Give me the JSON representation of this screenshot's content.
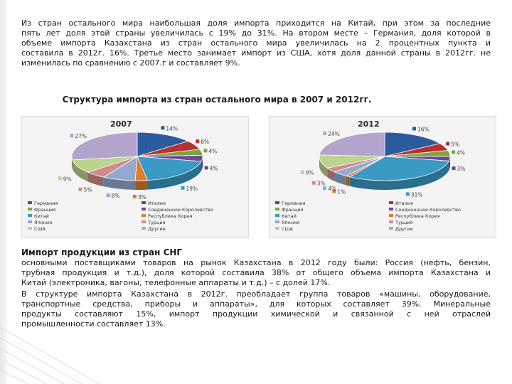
{
  "intro_lines": [
    "Из стран остального мира наибольшая доля импорта приходится на Китай, при этом за последние",
    "пять лет доля этой страны увеличилась с 19% до 31%. На втором месте – Германия, доля которой в",
    "объеме импорта Казахстана из стран остального мира увеличилась на 2 процентных пункта и",
    "составила в 2012г. 16%. Третье место занимает импорт из США, хотя доля данной страны в 2012гг. не",
    "изменилась по сравнению с 2007.г и составляет 9%."
  ],
  "chart_heading": "Структура импорта из стран остального мира в 2007 и 2012гг.",
  "chart_data": [
    {
      "type": "pie",
      "title": "2007",
      "categories": [
        "Германия",
        "Италия",
        "Франция",
        "Соединенное Королевство",
        "Китай",
        "Республика Корея",
        "Япония",
        "Турция",
        "США",
        "Другие"
      ],
      "values": [
        14,
        6,
        4,
        4,
        19,
        3,
        8,
        5,
        9,
        27
      ],
      "labels": [
        "14%",
        "6%",
        "4%",
        "4%",
        "19%",
        "3%",
        "8%",
        "5%",
        "9%",
        "27%"
      ],
      "colors": [
        "#2c5b9e",
        "#b5302e",
        "#7fa53a",
        "#6b4a99",
        "#3a9ac4",
        "#e07c2a",
        "#93a9d0",
        "#d08b8b",
        "#bcd38d",
        "#b3a4cd"
      ],
      "legend_position": "bottom"
    },
    {
      "type": "pie",
      "title": "2012",
      "categories": [
        "Германия",
        "Италия",
        "Франция",
        "Соединенное Королевство",
        "Китай",
        "Республика Корея",
        "Япония",
        "Турция",
        "США",
        "Другие"
      ],
      "values": [
        16,
        5,
        4,
        3,
        31,
        1,
        4,
        3,
        9,
        24
      ],
      "labels": [
        "16%",
        "5%",
        "4%",
        "3%",
        "31%",
        "1%",
        "4%",
        "3%",
        "9%",
        "24%"
      ],
      "colors": [
        "#2c5b9e",
        "#b5302e",
        "#7fa53a",
        "#6b4a99",
        "#3a9ac4",
        "#e07c2a",
        "#93a9d0",
        "#d08b8b",
        "#bcd38d",
        "#b3a4cd"
      ],
      "legend_position": "bottom"
    }
  ],
  "cis_heading": "Импорт продукции из стран СНГ",
  "cis_lines_1": [
    "основными поставщиками товаров на рынок Казахстана в 2012 году были: Россия (нефть, бензин,",
    "трубная продукция и т.д.), доля которой составила 38% от общего объема импорта Казахстана и",
    "Китай (электроника, вагоны, телефонные аппараты и т.д.) – с долей 17%."
  ],
  "cis_lines_2": [
    "В структуре импорта Казахстана в 2012г. преобладает группа товаров «машины, оборудование,",
    "транспортные средства, приборы и аппараты», для которых составляет 39%. Минеральные",
    "продукты составляют 15%, импорт продукции химической и связанной с ней отраслей",
    "промышленности составляет 13%."
  ]
}
